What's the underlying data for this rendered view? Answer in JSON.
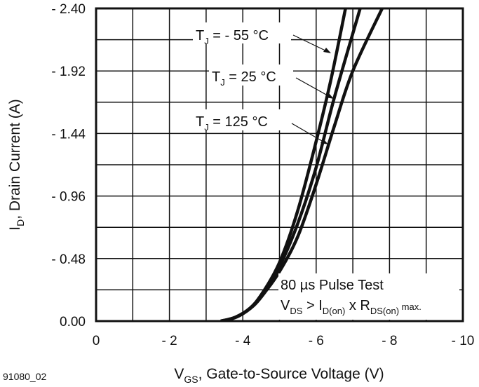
{
  "chart_data": {
    "type": "line",
    "xlabel_main": "V",
    "xlabel_sub": "GS",
    "xlabel_rest": ", Gate-to-Source Voltage (V)",
    "ylabel_main": "I",
    "ylabel_sub": "D",
    "ylabel_rest": ", Drain Current (A)",
    "xlim": [
      0,
      -10
    ],
    "ylim": [
      0,
      2.4
    ],
    "grid": true,
    "x_ticks": [
      "0",
      "- 2",
      "- 4",
      "- 6",
      "- 8",
      "- 10"
    ],
    "x_tick_values": [
      0,
      -2,
      -4,
      -6,
      -8,
      -10
    ],
    "y_ticks": [
      "0.00",
      "- 0.48",
      "- 0.96",
      "- 1.44",
      "- 1.92",
      "- 2.40"
    ],
    "y_tick_values": [
      0,
      0.48,
      0.96,
      1.44,
      1.92,
      2.4
    ],
    "series": [
      {
        "name": "TJ = - 55 °C",
        "label_main": "T",
        "label_sub": "J",
        "label_rest": " = - 55 °C",
        "x": [
          -3.4,
          -3.8,
          -4.2,
          -4.5,
          -5.0,
          -5.5,
          -6.0,
          -6.4,
          -6.8
        ],
        "y": [
          0,
          0.03,
          0.1,
          0.2,
          0.45,
          0.85,
          1.38,
          1.85,
          2.4
        ]
      },
      {
        "name": "TJ = 25 °C",
        "label_main": "T",
        "label_sub": "J",
        "label_rest": " = 25 °C",
        "x": [
          -3.4,
          -3.8,
          -4.2,
          -4.5,
          -5.0,
          -5.5,
          -6.0,
          -6.5,
          -7.2
        ],
        "y": [
          0,
          0.03,
          0.1,
          0.2,
          0.42,
          0.75,
          1.18,
          1.72,
          2.4
        ]
      },
      {
        "name": "TJ = 125 °C",
        "label_main": "T",
        "label_sub": "J",
        "label_rest": " = 125 °C",
        "x": [
          -3.5,
          -3.9,
          -4.3,
          -4.6,
          -5.0,
          -5.5,
          -6.0,
          -6.5,
          -7.0,
          -7.8
        ],
        "y": [
          0,
          0.04,
          0.12,
          0.22,
          0.38,
          0.65,
          1.05,
          1.5,
          1.92,
          2.4
        ]
      }
    ],
    "annotations": {
      "pulse_test": "80 µs Pulse Test",
      "cond_v": "V",
      "cond_v_sub": "DS",
      "cond_gt": " > I",
      "cond_i_sub": "D(on)",
      "cond_x": " x R",
      "cond_r_sub": "DS(on)",
      "cond_max": " max."
    },
    "figure_id": "91080_02"
  }
}
